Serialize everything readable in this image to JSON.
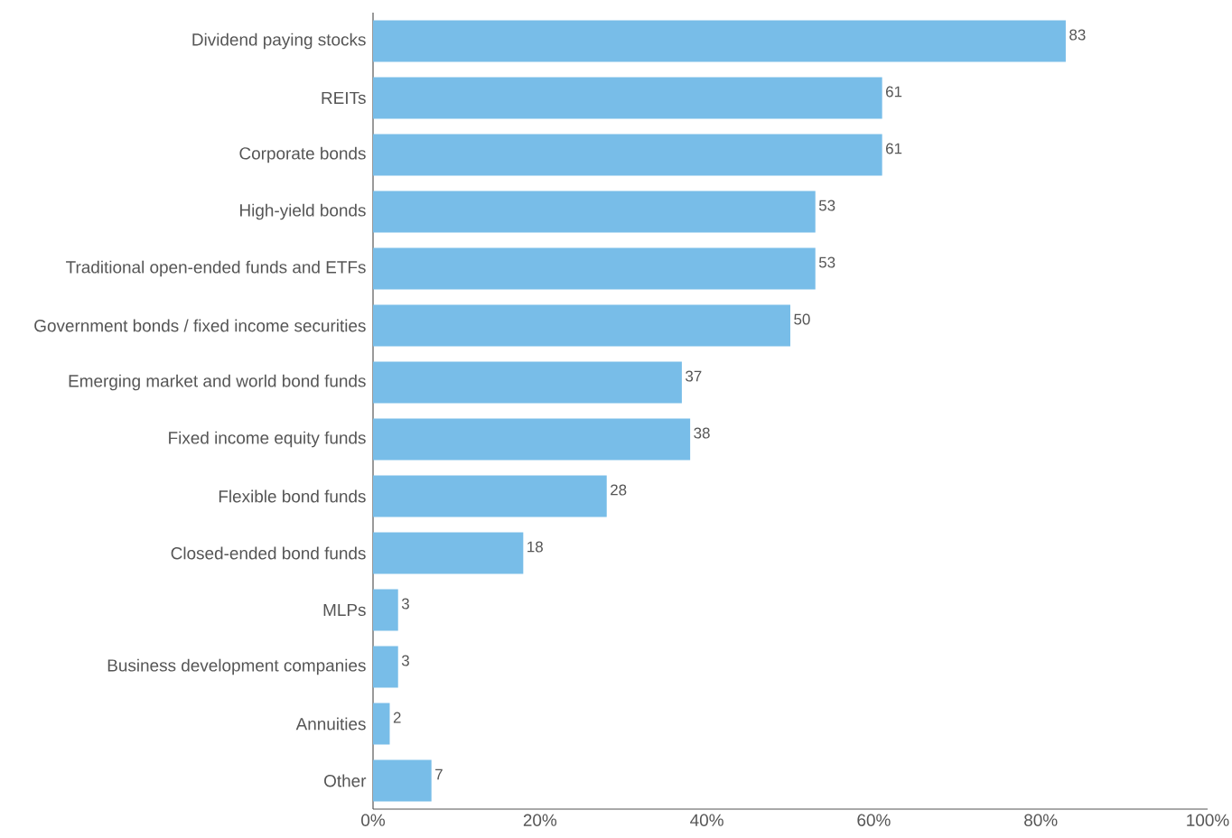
{
  "chart_data": {
    "type": "bar",
    "orientation": "horizontal",
    "categories": [
      "Dividend paying stocks",
      "REITs",
      "Corporate bonds",
      "High-yield bonds",
      "Traditional open-ended funds and ETFs",
      "Government bonds / fixed income securities",
      "Emerging market and world bond funds",
      "Fixed income equity funds",
      "Flexible bond funds",
      "Closed-ended bond funds",
      "MLPs",
      "Business development companies",
      "Annuities",
      "Other"
    ],
    "values": [
      83,
      61,
      61,
      53,
      53,
      50,
      37,
      38,
      28,
      18,
      3,
      3,
      2,
      7
    ],
    "color": "#78bde8",
    "xlim": [
      0,
      100
    ],
    "xticks": [
      {
        "value": 0,
        "label": "0%"
      },
      {
        "value": 20,
        "label": "20%"
      },
      {
        "value": 40,
        "label": "40%"
      },
      {
        "value": 60,
        "label": "60%"
      },
      {
        "value": 80,
        "label": "80%"
      },
      {
        "value": 100,
        "label": "100%"
      }
    ],
    "data_labels": true
  }
}
